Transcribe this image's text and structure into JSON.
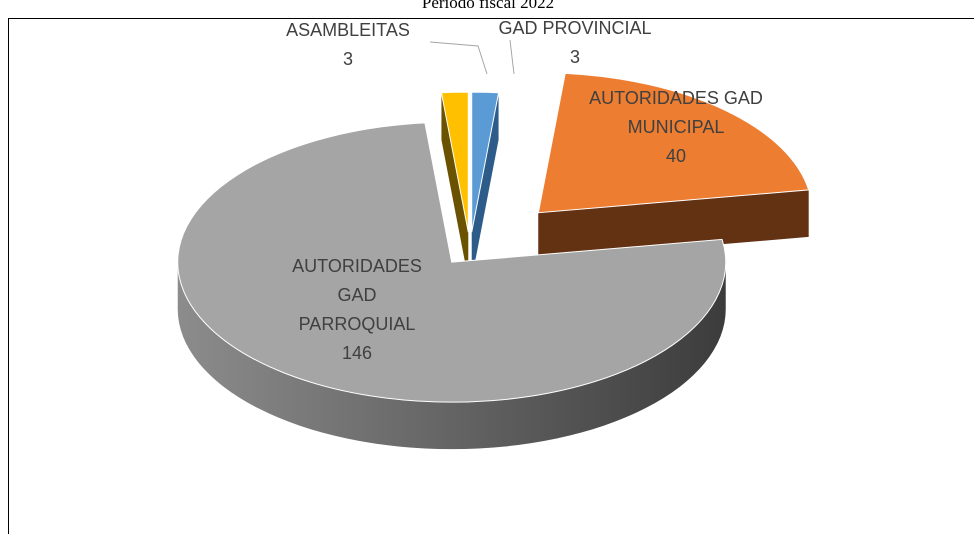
{
  "chart_data": {
    "type": "pie",
    "title": "Periodo fiscal 2022",
    "categories": [
      "GAD PROVINCIAL",
      "AUTORIDADES GAD MUNICIPAL",
      "AUTORIDADES GAD PARROQUIAL",
      "ASAMBLEITAS"
    ],
    "values": [
      3,
      40,
      146,
      3
    ],
    "colors": [
      "#5b9bd5",
      "#ed7d31",
      "#a5a5a5",
      "#ffc000"
    ]
  }
}
